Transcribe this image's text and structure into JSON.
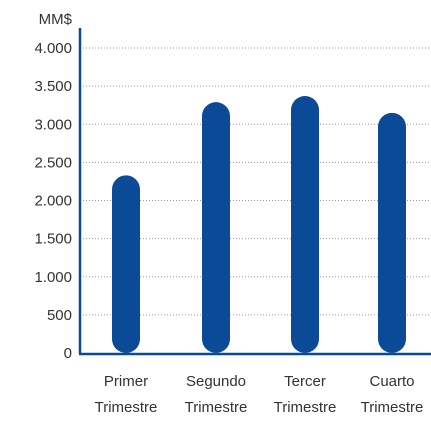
{
  "chart_data": {
    "type": "bar",
    "ylabel": "MM$",
    "categories": [
      [
        "Primer",
        "Trimestre"
      ],
      [
        "Segundo",
        "Trimestre"
      ],
      [
        "Tercer",
        "Trimestre"
      ],
      [
        "Cuarto",
        "Trimestre"
      ]
    ],
    "values": [
      2330,
      3290,
      3370,
      3150
    ],
    "ylim": [
      0,
      4000
    ],
    "yticks": [
      0,
      500,
      1000,
      1500,
      2000,
      2500,
      3000,
      3500,
      4000
    ],
    "ytick_labels": [
      "0",
      "500",
      "1.000",
      "1.500",
      "2.000",
      "2.500",
      "3.000",
      "3.500",
      "4.000"
    ],
    "grid": true,
    "bar_color": "#0a4a96",
    "axis_color": "#0a4a96",
    "grid_color": "#9a9a9a"
  }
}
